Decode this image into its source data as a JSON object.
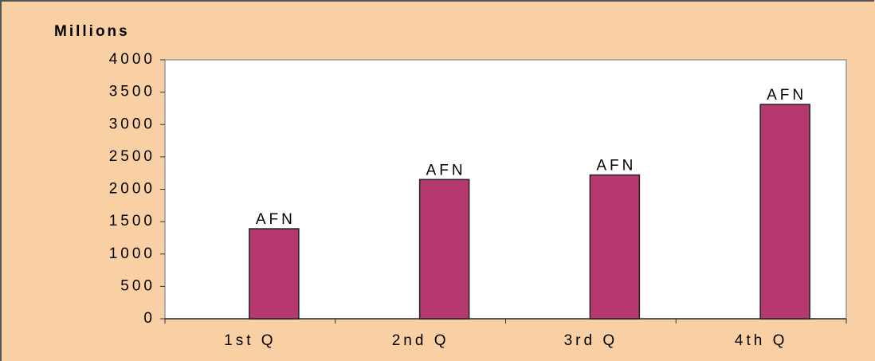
{
  "chart_data": {
    "type": "bar",
    "y_label": "Millions",
    "categories": [
      "1st Q",
      "2nd Q",
      "3rd Q",
      "4th Q"
    ],
    "values": [
      1390,
      2150,
      2220,
      3310
    ],
    "value_labels": [
      "AFN",
      "AFN",
      "AFN",
      "AFN"
    ],
    "color": "#b5396f",
    "ylim": [
      0,
      4000
    ],
    "yticks": [
      0,
      500,
      1000,
      1500,
      2000,
      2500,
      3000,
      3500,
      4000
    ]
  }
}
